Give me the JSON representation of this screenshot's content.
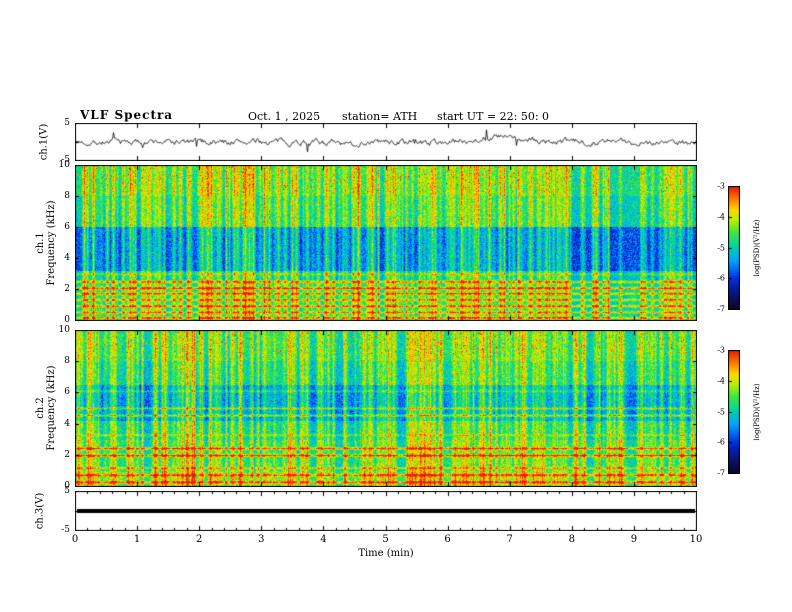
{
  "header": {
    "title": "VLF Spectra",
    "date": "Oct. 1 , 2025",
    "station": "station= ATH",
    "start_ut": "start UT =  22: 50: 0"
  },
  "axes": {
    "x": {
      "label": "Time (min)",
      "lim": [
        0,
        10
      ],
      "ticks": [
        0,
        1,
        2,
        3,
        4,
        5,
        6,
        7,
        8,
        9,
        10
      ],
      "minor_tick_step": 0.2
    },
    "wave_y": {
      "label": "ch.1(V)",
      "lim": [
        -5,
        5
      ],
      "ticks": [
        5,
        -5
      ]
    },
    "spec1_y": {
      "label_line1": "ch.1",
      "label_line2": "Frequency (kHz)",
      "lim": [
        0,
        10
      ],
      "ticks": [
        10,
        8,
        6,
        4,
        2,
        0
      ]
    },
    "spec2_y": {
      "label_line1": "ch.2",
      "label_line2": "Frequency (kHz)",
      "lim": [
        0,
        10
      ],
      "ticks": [
        10,
        8,
        6,
        4,
        2,
        0
      ]
    },
    "ch3_y": {
      "label": "ch.3(V)",
      "lim": [
        -5,
        5
      ],
      "ticks": [
        5,
        -5
      ]
    }
  },
  "colorbar": {
    "label": "log(PSD)(V²/Hz)",
    "lim": [
      -7,
      -3
    ],
    "ticks": [
      -3,
      -4,
      -5,
      -6,
      -7
    ]
  },
  "chart_data": [
    {
      "type": "line",
      "name": "ch.1 voltage waveform",
      "xlabel": "Time (min)",
      "ylabel": "ch.1(V)",
      "xlim": [
        0,
        10
      ],
      "ylim": [
        -5,
        5
      ],
      "summary": "broadband noise around 0 V, ~±1 V jitter with impulsive spikes to ±3 V and a slow positive excursion near t≈6.8 min",
      "noise_V": 1.2,
      "spike_prob": 0.012,
      "spike_V": 2.0,
      "bumps": [
        {
          "t_min": 6.8,
          "amp_V": 1.3,
          "width_min": 0.45
        },
        {
          "t_min": 4.35,
          "amp_V": -0.8,
          "width_min": 0.2
        }
      ]
    },
    {
      "type": "heatmap",
      "name": "ch.1 VLF spectrogram",
      "xlim": [
        0,
        10
      ],
      "ylim": [
        0,
        10
      ],
      "zlim": [
        -7,
        -3
      ],
      "zlabel": "log(PSD)(V²/Hz)",
      "bands": [
        {
          "f": [
            8,
            10
          ],
          "psd": -4.9
        },
        {
          "f": [
            6,
            8
          ],
          "psd": -5.1
        },
        {
          "f": [
            3.2,
            6
          ],
          "psd": -5.9
        },
        {
          "f": [
            2.6,
            3.2
          ],
          "psd": -5.3
        },
        {
          "f": [
            0,
            2.6
          ],
          "psd": -5.0
        }
      ],
      "lines": [
        {
          "f": 0.2,
          "boost": 1.2
        },
        {
          "f": 0.55,
          "boost": 1.0
        },
        {
          "f": 0.95,
          "boost": 1.2
        },
        {
          "f": 1.35,
          "boost": 1.0
        },
        {
          "f": 1.75,
          "boost": 1.2
        },
        {
          "f": 2.1,
          "boost": 1.4
        },
        {
          "f": 2.5,
          "boost": 1.0
        },
        {
          "f": 3.0,
          "boost": 0.6
        }
      ],
      "streaks": {
        "count": 220,
        "max_boost": 1.5
      },
      "speckle_above_kHz": 8.3
    },
    {
      "type": "heatmap",
      "name": "ch.2 VLF spectrogram",
      "xlim": [
        0,
        10
      ],
      "ylim": [
        0,
        10
      ],
      "zlim": [
        -7,
        -3
      ],
      "zlabel": "log(PSD)(V²/Hz)",
      "bands": [
        {
          "f": [
            8,
            10
          ],
          "psd": -5.0
        },
        {
          "f": [
            6.5,
            8
          ],
          "psd": -5.2
        },
        {
          "f": [
            4.2,
            6.5
          ],
          "psd": -5.7
        },
        {
          "f": [
            3,
            4.2
          ],
          "psd": -5.2
        },
        {
          "f": [
            1,
            3
          ],
          "psd": -5.0
        },
        {
          "f": [
            0,
            1
          ],
          "psd": -4.7
        }
      ],
      "lines": [
        {
          "f": 0.3,
          "boost": 1.2
        },
        {
          "f": 0.75,
          "boost": 1.1
        },
        {
          "f": 1.2,
          "boost": 0.8
        },
        {
          "f": 2.0,
          "boost": 1.5
        },
        {
          "f": 2.45,
          "boost": 1.3
        },
        {
          "f": 3.3,
          "boost": 0.6
        },
        {
          "f": 4.55,
          "boost": 1.2
        },
        {
          "f": 5.0,
          "boost": 0.9
        },
        {
          "f": 6.1,
          "boost": 0.5
        }
      ],
      "streaks": {
        "count": 230,
        "max_boost": 1.5
      },
      "speckle_above_kHz": 8.5
    },
    {
      "type": "line",
      "name": "ch.3 voltage waveform",
      "xlim": [
        0,
        10
      ],
      "ylim": [
        -5,
        5
      ],
      "constant_V": 0,
      "summary": "flat thick trace at 0 V across the full interval (no signal)"
    }
  ]
}
